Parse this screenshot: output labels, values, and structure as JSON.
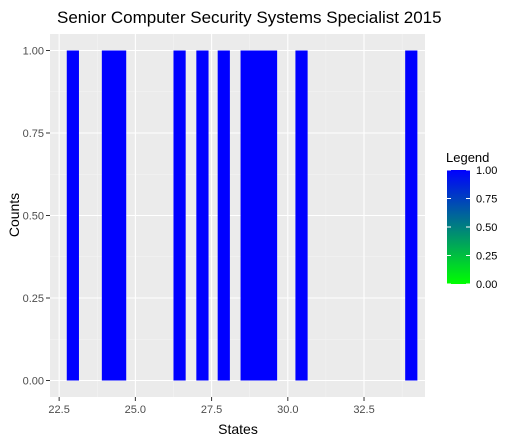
{
  "chart_data": {
    "type": "bar",
    "title": "Senior Computer Security Systems Specialist 2015",
    "xlabel": "States",
    "ylabel": "Counts",
    "xlim": [
      22.2,
      34.5
    ],
    "ylim": [
      -0.05,
      1.05
    ],
    "x_ticks": [
      22.5,
      25.0,
      27.5,
      30.0,
      32.5
    ],
    "x_tick_labels": [
      "22.5",
      "25.0",
      "27.5",
      "30.0",
      "32.5"
    ],
    "y_ticks": [
      0,
      0.25,
      0.5,
      0.75,
      1.0
    ],
    "y_tick_labels": [
      "0.00",
      "0.25",
      "0.50",
      "0.75",
      "1.00"
    ],
    "bars": [
      {
        "xmin": 22.75,
        "xmax": 23.15,
        "value": 1
      },
      {
        "xmin": 23.9,
        "xmax": 24.7,
        "value": 1
      },
      {
        "xmin": 26.25,
        "xmax": 26.65,
        "value": 1
      },
      {
        "xmin": 27.0,
        "xmax": 27.4,
        "value": 1
      },
      {
        "xmin": 27.7,
        "xmax": 28.1,
        "value": 1
      },
      {
        "xmin": 28.45,
        "xmax": 29.65,
        "value": 1
      },
      {
        "xmin": 30.25,
        "xmax": 30.65,
        "value": 1
      },
      {
        "xmin": 33.85,
        "xmax": 34.25,
        "value": 1
      }
    ],
    "bar_color": "#0000ff",
    "panel_background": "#ebebeb",
    "grid": true,
    "legend": {
      "title": "Legend",
      "position": "right",
      "gradient": [
        "#00ff00",
        "#0000ff"
      ],
      "ticks": [
        0,
        0.25,
        0.5,
        0.75,
        1.0
      ],
      "tick_labels": [
        "0.00",
        "0.25",
        "0.50",
        "0.75",
        "1.00"
      ]
    }
  }
}
